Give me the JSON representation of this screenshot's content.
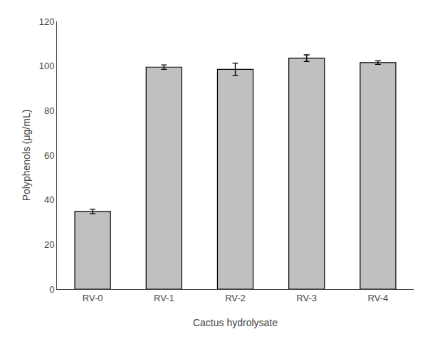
{
  "chart_data": {
    "type": "bar",
    "categories": [
      "RV-0",
      "RV-1",
      "RV-2",
      "RV-3",
      "RV-4"
    ],
    "values": [
      34.8,
      99.5,
      98.5,
      103.5,
      101.5
    ],
    "errors": [
      1.0,
      1.0,
      2.8,
      1.5,
      0.8
    ],
    "color": "#c0c0c0",
    "xlabel": "Cactus hydrolysate",
    "ylabel": "Polyphenols (μg/mL)",
    "ylim": [
      0,
      120
    ],
    "yticks": [
      0,
      20,
      40,
      60,
      80,
      100,
      120
    ],
    "grid": false
  }
}
